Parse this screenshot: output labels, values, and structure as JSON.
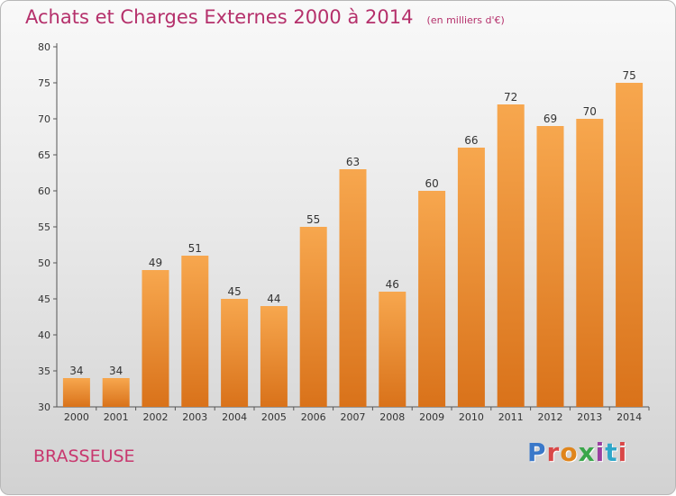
{
  "header": {
    "title": "Achats et Charges Externes 2000 à 2014",
    "subtitle": "(en milliers d'€)"
  },
  "footer": {
    "commune": "BRASSEUSE",
    "logo_text": "Proxiti",
    "logo_colors": [
      "#3a78c9",
      "#d94848",
      "#e0851c",
      "#3aa64a",
      "#9a3fa0",
      "#2fa7c9",
      "#d94848"
    ]
  },
  "chart_data": {
    "type": "bar",
    "title": "Achats et Charges Externes 2000 à 2014",
    "subtitle": "(en milliers d'€)",
    "xlabel": "",
    "ylabel": "",
    "categories": [
      "2000",
      "2001",
      "2002",
      "2003",
      "2004",
      "2005",
      "2006",
      "2007",
      "2008",
      "2009",
      "2010",
      "2011",
      "2012",
      "2013",
      "2014"
    ],
    "values": [
      34,
      34,
      49,
      51,
      45,
      44,
      55,
      63,
      46,
      60,
      66,
      72,
      69,
      70,
      75
    ],
    "ylim": [
      30,
      80
    ],
    "yticks": [
      30,
      35,
      40,
      45,
      50,
      55,
      60,
      65,
      70,
      75,
      80
    ],
    "grid": false,
    "bar_color_top": "#f7a74e",
    "bar_color_bottom": "#d9721a"
  }
}
